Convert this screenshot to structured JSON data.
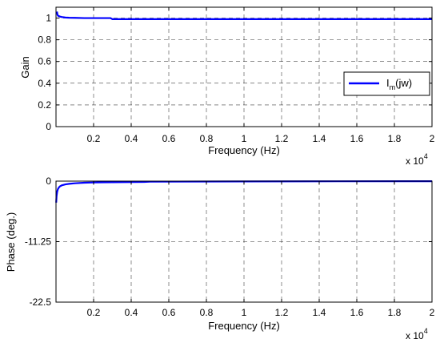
{
  "chart_data": [
    {
      "type": "line",
      "title": "",
      "xlabel": "Frequency (Hz)",
      "ylabel": "Gain",
      "x_multiplier_label": {
        "base": "x 10",
        "exp": "4"
      },
      "xlim": [
        0,
        2
      ],
      "ylim": [
        0,
        1.1
      ],
      "xticks": [
        0.2,
        0.4,
        0.6,
        0.8,
        1,
        1.2,
        1.4,
        1.6,
        1.8,
        2
      ],
      "xtick_labels": [
        "0.2",
        "0.4",
        "0.6",
        "0.8",
        "1",
        "1.2",
        "1.4",
        "1.6",
        "1.8",
        "2"
      ],
      "yticks": [
        0,
        0.2,
        0.4,
        0.6,
        0.8,
        1
      ],
      "ytick_labels": [
        "0",
        "0.2",
        "0.4",
        "0.6",
        "0.8",
        "1"
      ],
      "grid": true,
      "legend": {
        "position": "right",
        "label_main": "I",
        "label_sub": "m",
        "label_rest": "(jw)"
      },
      "color": "#0000ff",
      "series": [
        {
          "name": "Im(jw)",
          "x": [
            0.005,
            0.008,
            0.012,
            0.02,
            0.03,
            0.05,
            0.07,
            0.1,
            0.15,
            0.2,
            0.25,
            0.29,
            0.3,
            0.5,
            1.0,
            1.5,
            2.0
          ],
          "y": [
            1.06,
            1.03,
            1.02,
            1.015,
            1.01,
            1.005,
            1.003,
            1.002,
            1.0,
            1.0,
            1.0,
            1.0,
            0.99,
            0.99,
            0.99,
            0.99,
            0.99
          ]
        }
      ]
    },
    {
      "type": "line",
      "title": "",
      "xlabel": "Frequency (Hz)",
      "ylabel": "Phase (deg.)",
      "x_multiplier_label": {
        "base": "x 10",
        "exp": "4"
      },
      "xlim": [
        0,
        2
      ],
      "ylim": [
        -22.5,
        0
      ],
      "xticks": [
        0.2,
        0.4,
        0.6,
        0.8,
        1,
        1.2,
        1.4,
        1.6,
        1.8,
        2
      ],
      "xtick_labels": [
        "0.2",
        "0.4",
        "0.6",
        "0.8",
        "1",
        "1.2",
        "1.4",
        "1.6",
        "1.8",
        "2"
      ],
      "yticks": [
        -22.5,
        -11.25,
        0
      ],
      "ytick_labels": [
        "-22.5",
        "-11.25",
        "0"
      ],
      "grid": true,
      "color": "#0000ff",
      "series": [
        {
          "x": [
            0.001,
            0.003,
            0.006,
            0.01,
            0.015,
            0.02,
            0.03,
            0.05,
            0.07,
            0.1,
            0.15,
            0.2,
            0.3,
            0.47,
            0.5,
            1.0,
            1.5,
            1.9,
            2.0
          ],
          "y": [
            -4.0,
            -2.8,
            -2.0,
            -1.5,
            -1.2,
            -1.0,
            -0.8,
            -0.6,
            -0.5,
            -0.4,
            -0.3,
            -0.25,
            -0.2,
            -0.15,
            -0.1,
            -0.05,
            -0.03,
            -0.02,
            -0.02
          ]
        }
      ]
    }
  ]
}
